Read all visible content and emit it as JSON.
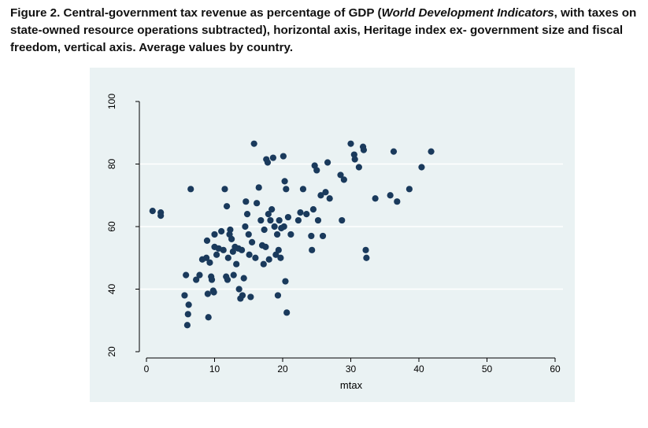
{
  "caption": {
    "label": "Figure 2.",
    "part1": " Central-government tax revenue as percentage of GDP (",
    "italic": "World Development Indicators",
    "part2": ", with taxes on state-owned resource operations subtracted), horizontal axis, Heritage index ex- government size and fiscal freedom, vertical axis.  Average values by country."
  },
  "colors": {
    "plot_region": "#eaf2f3",
    "marker": "#1a3a5c",
    "gridline": "#ffffff",
    "axis": "#000000"
  },
  "chart_data": {
    "type": "scatter",
    "title": "",
    "xlabel": "mtax",
    "ylabel": "",
    "xlim": [
      0,
      60
    ],
    "ylim": [
      20,
      100
    ],
    "xticks": [
      0,
      10,
      20,
      30,
      40,
      50,
      60
    ],
    "yticks": [
      20,
      40,
      60,
      80,
      100
    ],
    "grid": true,
    "legend": "none",
    "points": [
      [
        0.9,
        65.0
      ],
      [
        2.1,
        64.5
      ],
      [
        2.1,
        63.5
      ],
      [
        6.5,
        72.0
      ],
      [
        5.8,
        44.5
      ],
      [
        5.6,
        38.0
      ],
      [
        6.2,
        35.0
      ],
      [
        6.1,
        32.0
      ],
      [
        6.0,
        28.5
      ],
      [
        7.3,
        43.0
      ],
      [
        7.8,
        44.5
      ],
      [
        8.2,
        49.5
      ],
      [
        8.8,
        50.0
      ],
      [
        9.0,
        38.5
      ],
      [
        9.1,
        31.0
      ],
      [
        8.9,
        55.5
      ],
      [
        9.3,
        48.5
      ],
      [
        9.5,
        44.0
      ],
      [
        9.6,
        43.0
      ],
      [
        9.8,
        39.5
      ],
      [
        9.9,
        39.0
      ],
      [
        10.0,
        53.5
      ],
      [
        10.0,
        57.5
      ],
      [
        10.3,
        51.0
      ],
      [
        10.6,
        53.0
      ],
      [
        11.0,
        58.5
      ],
      [
        11.3,
        52.5
      ],
      [
        11.5,
        72.0
      ],
      [
        11.8,
        66.5
      ],
      [
        11.7,
        44.0
      ],
      [
        11.9,
        43.0
      ],
      [
        12.0,
        50.0
      ],
      [
        12.2,
        57.5
      ],
      [
        12.3,
        59.0
      ],
      [
        12.5,
        56.0
      ],
      [
        12.7,
        52.0
      ],
      [
        12.8,
        44.5
      ],
      [
        13.0,
        53.5
      ],
      [
        13.2,
        48.0
      ],
      [
        13.5,
        53.0
      ],
      [
        13.6,
        40.0
      ],
      [
        13.8,
        37.0
      ],
      [
        14.0,
        52.5
      ],
      [
        14.1,
        38.0
      ],
      [
        14.3,
        43.5
      ],
      [
        14.5,
        60.0
      ],
      [
        14.6,
        68.0
      ],
      [
        14.8,
        64.0
      ],
      [
        15.0,
        57.5
      ],
      [
        15.1,
        51.0
      ],
      [
        15.3,
        37.5
      ],
      [
        15.5,
        55.0
      ],
      [
        15.8,
        86.5
      ],
      [
        16.0,
        50.0
      ],
      [
        16.2,
        67.5
      ],
      [
        16.5,
        72.5
      ],
      [
        16.8,
        62.0
      ],
      [
        17.0,
        54.0
      ],
      [
        17.2,
        48.0
      ],
      [
        17.3,
        59.0
      ],
      [
        17.5,
        53.5
      ],
      [
        17.6,
        81.5
      ],
      [
        17.8,
        80.5
      ],
      [
        17.9,
        64.0
      ],
      [
        18.0,
        49.5
      ],
      [
        18.2,
        62.0
      ],
      [
        18.4,
        65.5
      ],
      [
        18.6,
        82.0
      ],
      [
        18.8,
        60.0
      ],
      [
        19.0,
        51.0
      ],
      [
        19.2,
        57.5
      ],
      [
        19.3,
        38.0
      ],
      [
        19.4,
        52.5
      ],
      [
        19.5,
        62.0
      ],
      [
        19.7,
        50.0
      ],
      [
        19.8,
        59.5
      ],
      [
        20.1,
        82.5
      ],
      [
        20.2,
        60.0
      ],
      [
        20.3,
        74.5
      ],
      [
        20.4,
        42.5
      ],
      [
        20.5,
        72.0
      ],
      [
        20.6,
        32.5
      ],
      [
        20.8,
        63.0
      ],
      [
        21.2,
        57.5
      ],
      [
        22.3,
        62.0
      ],
      [
        22.6,
        64.5
      ],
      [
        23.0,
        72.0
      ],
      [
        23.5,
        64.0
      ],
      [
        24.2,
        57.0
      ],
      [
        24.3,
        52.5
      ],
      [
        24.5,
        65.5
      ],
      [
        24.7,
        79.5
      ],
      [
        25.0,
        78.0
      ],
      [
        25.2,
        62.0
      ],
      [
        25.6,
        70.0
      ],
      [
        25.9,
        57.0
      ],
      [
        26.3,
        71.0
      ],
      [
        26.6,
        80.5
      ],
      [
        26.9,
        69.0
      ],
      [
        28.5,
        76.5
      ],
      [
        28.7,
        62.0
      ],
      [
        29.0,
        75.0
      ],
      [
        30.0,
        86.5
      ],
      [
        30.6,
        81.5
      ],
      [
        30.5,
        83.0
      ],
      [
        31.2,
        79.0
      ],
      [
        31.8,
        85.5
      ],
      [
        31.9,
        84.5
      ],
      [
        32.2,
        52.5
      ],
      [
        32.3,
        50.0
      ],
      [
        33.6,
        69.0
      ],
      [
        35.8,
        70.0
      ],
      [
        36.3,
        84.0
      ],
      [
        36.8,
        68.0
      ],
      [
        38.6,
        72.0
      ],
      [
        40.4,
        79.0
      ],
      [
        41.8,
        84.0
      ]
    ]
  }
}
